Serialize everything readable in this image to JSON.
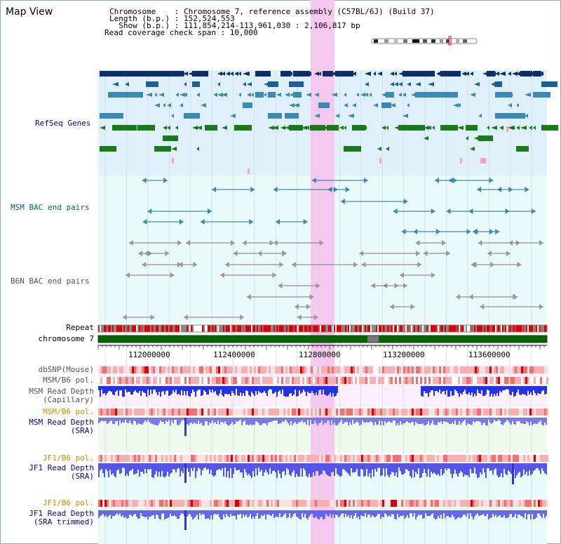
{
  "view": {
    "title": "Map View"
  },
  "header": {
    "chromosome_line": "Chromosome    : Chromosome 7, reference assembly (C57BL/6J) (Build 37)",
    "length_line": "Length (b.p.) : 152,524,553",
    "show_line": "  Show (b.p.) : 111,854,214-113,961,030 : 2,106,817 bp",
    "coverage_line": "Read coverage check span : 10,000"
  },
  "tracks": {
    "refseq": "RefSeq Genes",
    "msm_bac": "MSM BAC end pairs",
    "b6n_bac": "B6N BAC end pairs",
    "repeat": "Repeat",
    "chromosome": "chromosome 7",
    "dbsnp": "dbSNP(Mouse)",
    "msm_b6_pol_1": "MSM/B6 pol.",
    "msm_depth_cap": "MSM Read Depth\n(Capillary)",
    "msm_b6_pol_2": "MSM/B6 pol.",
    "msm_depth_sra": "MSM Read Depth\n(SRA)",
    "jf1_b6_pol_1": "JF1/B6 pol.",
    "jf1_depth_sra": "JF1 Read Depth\n(SRA)",
    "jf1_b6_pol_2": "JF1/B6 pol.",
    "jf1_depth_trim": "JF1 Read Depth\n(SRA trimmed)"
  },
  "axis": {
    "ticks": [
      "112000000",
      "112400000",
      "112800000",
      "113200000",
      "113600000"
    ]
  },
  "colors": {
    "refseq_label": "#0000aa",
    "msm_bac_label": "#006688",
    "b6n_label": "#555555",
    "pol_label": "#dd8800",
    "depth_label": "#0000aa",
    "highlight": "#f5c8f0",
    "chromosome_band": "#006600"
  }
}
